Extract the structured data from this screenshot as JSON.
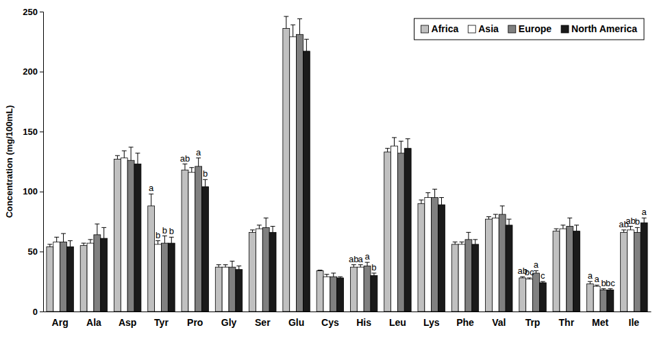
{
  "chart_data": {
    "type": "bar",
    "y_label": "Concentration (mg/100mL)",
    "categories": [
      "Arg",
      "Ala",
      "Asp",
      "Tyr",
      "Pro",
      "Gly",
      "Ser",
      "Glu",
      "Cys",
      "His",
      "Leu",
      "Lys",
      "Phe",
      "Val",
      "Trp",
      "Thr",
      "Met",
      "Ile"
    ],
    "series": [
      {
        "name": "Africa",
        "color": "#c0c0c0",
        "values": [
          54,
          55,
          127,
          88,
          118,
          37,
          66,
          236,
          34,
          37,
          133,
          90,
          56,
          77,
          28,
          67,
          23,
          66
        ],
        "errors": [
          2,
          2,
          3,
          10,
          5,
          2,
          2,
          10,
          0.5,
          2,
          3,
          3,
          2,
          2,
          1,
          2,
          2,
          2
        ],
        "letters": [
          null,
          null,
          null,
          "a",
          "ab",
          null,
          null,
          null,
          null,
          "ab",
          null,
          null,
          null,
          null,
          "ab",
          null,
          "a",
          "ab"
        ]
      },
      {
        "name": "Asia",
        "color": "#ffffff",
        "values": [
          58,
          57,
          128,
          56,
          116,
          37,
          69,
          229,
          29,
          37,
          138,
          95,
          56,
          78,
          27,
          69,
          21,
          68
        ],
        "errors": [
          4,
          3,
          6,
          3,
          4,
          2,
          3,
          10,
          2,
          2,
          7,
          4,
          2,
          3,
          1,
          3,
          1,
          3
        ],
        "letters": [
          null,
          null,
          null,
          "b",
          null,
          null,
          null,
          null,
          null,
          "a",
          null,
          null,
          null,
          null,
          "bc",
          null,
          "a",
          "ab"
        ]
      },
      {
        "name": "Europe",
        "color": "#808080",
        "values": [
          58,
          64,
          126,
          57,
          121,
          37,
          70,
          231,
          29,
          38,
          132,
          95,
          60,
          81,
          32,
          71,
          18,
          66
        ],
        "errors": [
          7,
          9,
          11,
          6,
          7,
          5,
          8,
          13,
          3,
          3,
          10,
          7,
          6,
          7,
          2,
          7,
          1,
          4
        ],
        "letters": [
          null,
          null,
          null,
          "b",
          "a",
          null,
          null,
          null,
          null,
          "a",
          null,
          null,
          null,
          null,
          "a",
          null,
          "b",
          "b"
        ]
      },
      {
        "name": "North America",
        "color": "#1a1a1a",
        "values": [
          54,
          61,
          123,
          57,
          104,
          35,
          66,
          217,
          28,
          30,
          136,
          89,
          56,
          72,
          24,
          67,
          18,
          74
        ],
        "errors": [
          5,
          9,
          9,
          5,
          6,
          3,
          5,
          10,
          1,
          2,
          8,
          6,
          4,
          5,
          1,
          5,
          1,
          4
        ],
        "letters": [
          null,
          null,
          null,
          "b",
          "b",
          null,
          null,
          null,
          null,
          "b",
          null,
          null,
          null,
          null,
          "c",
          null,
          "bc",
          "a"
        ]
      }
    ],
    "ylim": [
      0,
      250
    ],
    "yticks": [
      0,
      50,
      100,
      150,
      200,
      250
    ],
    "grid": false,
    "legend": "top-right"
  }
}
